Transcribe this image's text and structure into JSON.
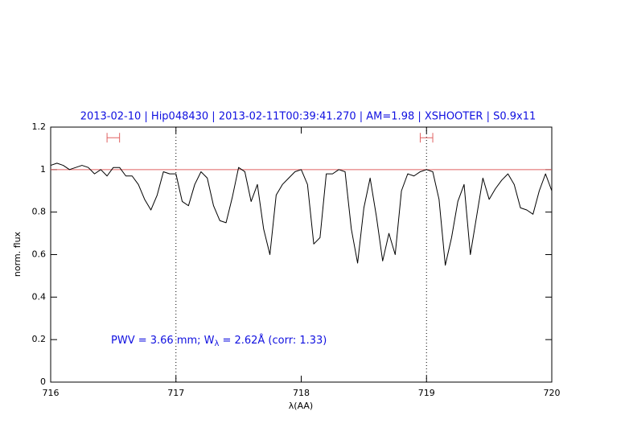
{
  "chart_data": {
    "type": "line",
    "title": "2013-02-10 | Hip048430 | 2013-02-11T00:39:41.270 | AM=1.98 | XSHOOTER | S0.9x11",
    "xlabel": "λ(AA)",
    "ylabel": "norm. flux",
    "annotation": [
      "PWV = 3.66 mm; W",
      "λ",
      "= 2.62Å (corr: 1.33)"
    ],
    "xlim": [
      716,
      720
    ],
    "ylim": [
      0,
      1.2
    ],
    "xticks": [
      716,
      717,
      718,
      719,
      720
    ],
    "yticks": [
      0,
      0.2,
      0.4,
      0.6,
      0.8,
      1,
      1.2
    ],
    "hline": 1,
    "hline_color": "#e06060",
    "vlines": [
      717,
      719
    ],
    "intervals": [
      {
        "x": [
          716.45,
          716.55
        ],
        "y": 1.15
      },
      {
        "x": [
          718.95,
          719.05
        ],
        "y": 1.15
      }
    ],
    "interval_color": "#e06060",
    "series": [
      {
        "color": "#000000",
        "x": [
          716.0,
          716.05,
          716.1,
          716.15,
          716.2,
          716.25,
          716.3,
          716.35,
          716.4,
          716.45,
          716.5,
          716.55,
          716.6,
          716.65,
          716.7,
          716.75,
          716.8,
          716.85,
          716.9,
          716.95,
          717.0,
          717.05,
          717.1,
          717.15,
          717.2,
          717.25,
          717.3,
          717.35,
          717.4,
          717.45,
          717.5,
          717.55,
          717.6,
          717.65,
          717.7,
          717.75,
          717.8,
          717.85,
          717.9,
          717.95,
          718.0,
          718.05,
          718.1,
          718.15,
          718.2,
          718.25,
          718.3,
          718.35,
          718.4,
          718.45,
          718.5,
          718.55,
          718.6,
          718.65,
          718.7,
          718.75,
          718.8,
          718.85,
          718.9,
          718.95,
          719.0,
          719.05,
          719.1,
          719.15,
          719.2,
          719.25,
          719.3,
          719.35,
          719.4,
          719.45,
          719.5,
          719.55,
          719.6,
          719.65,
          719.7,
          719.75,
          719.8,
          719.85,
          719.9,
          719.95,
          720.0
        ],
        "values": [
          1.02,
          1.03,
          1.02,
          1.0,
          1.01,
          1.02,
          1.01,
          0.98,
          1.0,
          0.97,
          1.01,
          1.01,
          0.97,
          0.97,
          0.93,
          0.86,
          0.81,
          0.88,
          0.99,
          0.98,
          0.98,
          0.85,
          0.83,
          0.93,
          0.99,
          0.96,
          0.83,
          0.76,
          0.75,
          0.87,
          1.01,
          0.99,
          0.85,
          0.93,
          0.72,
          0.6,
          0.88,
          0.93,
          0.96,
          0.99,
          1.0,
          0.93,
          0.65,
          0.68,
          0.98,
          0.98,
          1.0,
          0.99,
          0.72,
          0.56,
          0.82,
          0.96,
          0.78,
          0.57,
          0.7,
          0.6,
          0.9,
          0.98,
          0.97,
          0.99,
          1.0,
          0.99,
          0.86,
          0.55,
          0.68,
          0.85,
          0.93,
          0.6,
          0.78,
          0.96,
          0.86,
          0.91,
          0.95,
          0.98,
          0.93,
          0.82,
          0.81,
          0.79,
          0.9,
          0.98,
          0.9
        ]
      }
    ]
  }
}
